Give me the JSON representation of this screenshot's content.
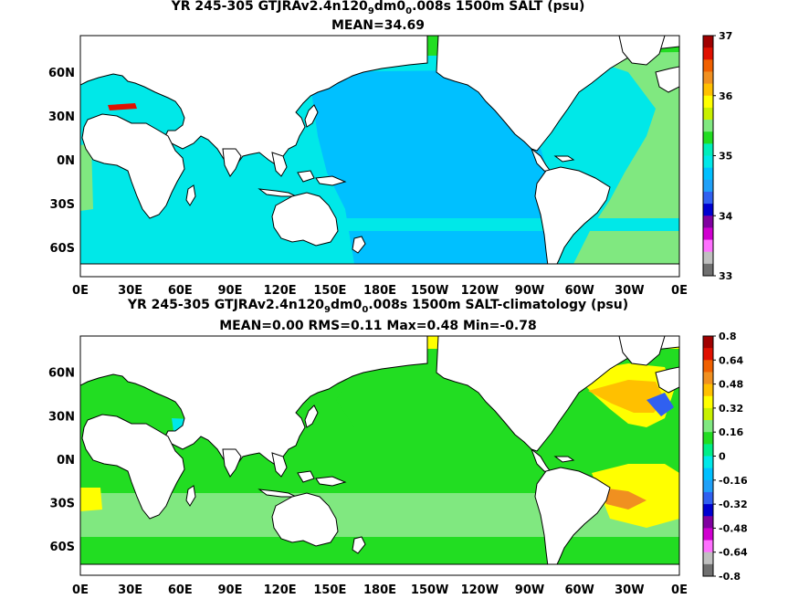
{
  "top_panel": {
    "title_prefix": "YR 245-305 GTJRAv2.4n120",
    "title_sub1": "9",
    "title_mid": "dm0",
    "title_sub2": "0",
    "title_suffix": ".008s 1500m SALT (psu)",
    "stats": "MEAN=34.69",
    "colorbar_labels": [
      "37",
      "36",
      "35",
      "34",
      "33"
    ],
    "colorbar_colors": [
      "#ffffff",
      "#a00000",
      "#e01000",
      "#f06000",
      "#f09020",
      "#ffc000",
      "#ffff00",
      "#c8f000",
      "#80e880",
      "#22dd22",
      "#00eebb",
      "#00e8e8",
      "#00c0ff",
      "#20a0f8",
      "#3060f0",
      "#0000d0",
      "#8000a0",
      "#d000d0",
      "#ff70ff",
      "#c0c0c0",
      "#707070"
    ],
    "colors": {
      "land": "#ffffff",
      "atlantic": "#80e880",
      "pacific": "#00c0ff",
      "indian": "#00e8e8",
      "arctic": "#22dd22",
      "med": "#e01000"
    }
  },
  "bottom_panel": {
    "title_prefix": "YR 245-305 GTJRAv2.4n120",
    "title_sub1": "9",
    "title_mid": "dm0",
    "title_sub2": "0",
    "title_suffix": ".008s 1500m SALT-climatology (psu)",
    "stats": "MEAN=0.00   RMS=0.11   Max=0.48   Min=-0.78",
    "colorbar_labels": [
      "0.8",
      "0.64",
      "0.48",
      "0.32",
      "0.16",
      "0",
      "-0.16",
      "-0.32",
      "-0.48",
      "-0.64",
      "-0.8"
    ],
    "colorbar_colors": [
      "#a00000",
      "#e01000",
      "#f06000",
      "#f09020",
      "#ffc000",
      "#ffff00",
      "#c8f000",
      "#80e880",
      "#22dd22",
      "#00ee88",
      "#00e8e8",
      "#00c0ff",
      "#20a0f8",
      "#3060f0",
      "#0000d0",
      "#8000a0",
      "#d000d0",
      "#ff70ff",
      "#c0c0c0",
      "#707070"
    ],
    "colors": {
      "land": "#ffffff",
      "base": "#22dd22",
      "positive_low": "#80e880",
      "positive_mid": "#ffff00",
      "positive_high": "#ffc000",
      "strong_positive": "#f09020",
      "negative": "#00e8e8",
      "strong_negative": "#3060f0"
    }
  },
  "axes": {
    "longitude_labels": [
      "0E",
      "30E",
      "60E",
      "90E",
      "120E",
      "150E",
      "180E",
      "150W",
      "120W",
      "90W",
      "60W",
      "30W",
      "0E"
    ],
    "latitude_labels": [
      "60N",
      "30N",
      "0N",
      "30S",
      "60S"
    ]
  }
}
